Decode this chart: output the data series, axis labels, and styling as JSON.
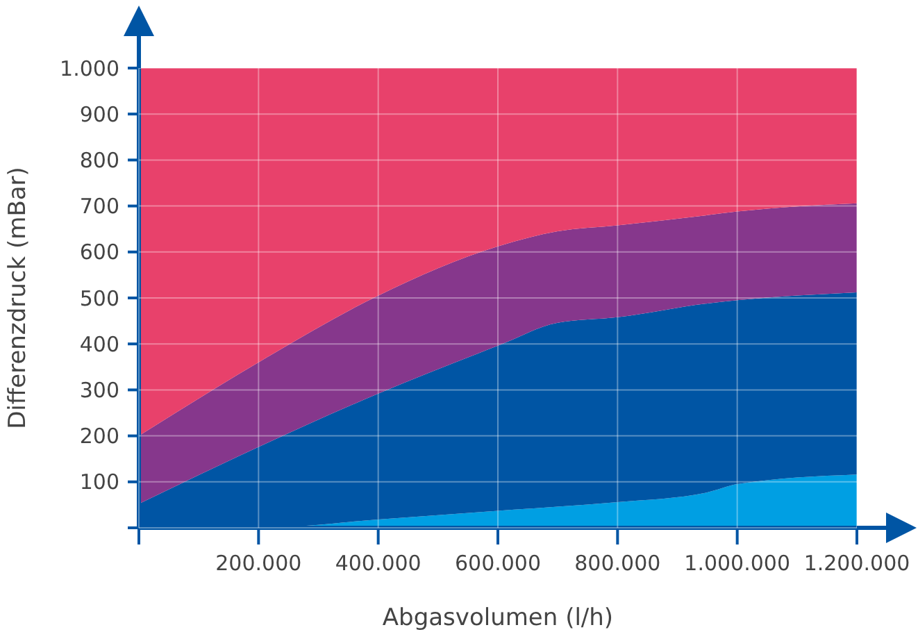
{
  "chart_data": {
    "type": "area",
    "xlabel": "Abgasvolumen (l/h)",
    "ylabel": "Differenzdruck (mBar)",
    "stacked": true,
    "x": [
      0,
      200000,
      400000,
      600000,
      700000,
      800000,
      950000,
      1000000,
      1200000
    ],
    "series": [
      {
        "color": "#009fe3",
        "values": [
          0,
          0,
          18,
          37,
          46,
          56,
          77,
          95,
          116
        ]
      },
      {
        "color": "#0055a4",
        "values": [
          52,
          176,
          274,
          359,
          400,
          402,
          411,
          400,
          396
        ]
      },
      {
        "color": "#86378c",
        "values": [
          148,
          184,
          213,
          216,
          199,
          200,
          192,
          193,
          194
        ]
      },
      {
        "color": "#e8416b",
        "values": [
          800,
          640,
          495,
          388,
          355,
          342,
          320,
          312,
          294
        ]
      }
    ],
    "xlim": [
      0,
      1200000
    ],
    "ylim": [
      0,
      1000
    ],
    "xticks": [
      {
        "value": 0,
        "label": null
      },
      {
        "value": 200000,
        "label": "200.000"
      },
      {
        "value": 400000,
        "label": "400.000"
      },
      {
        "value": 600000,
        "label": "600.000"
      },
      {
        "value": 800000,
        "label": "800.000"
      },
      {
        "value": 1000000,
        "label": "1.000.000"
      },
      {
        "value": 1200000,
        "label": "1.200.000"
      }
    ],
    "yticks": [
      {
        "value": 0,
        "label": null
      },
      100,
      200,
      300,
      400,
      500,
      600,
      700,
      800,
      900,
      {
        "value": 1000,
        "label": "1.000"
      }
    ],
    "grid": true
  }
}
